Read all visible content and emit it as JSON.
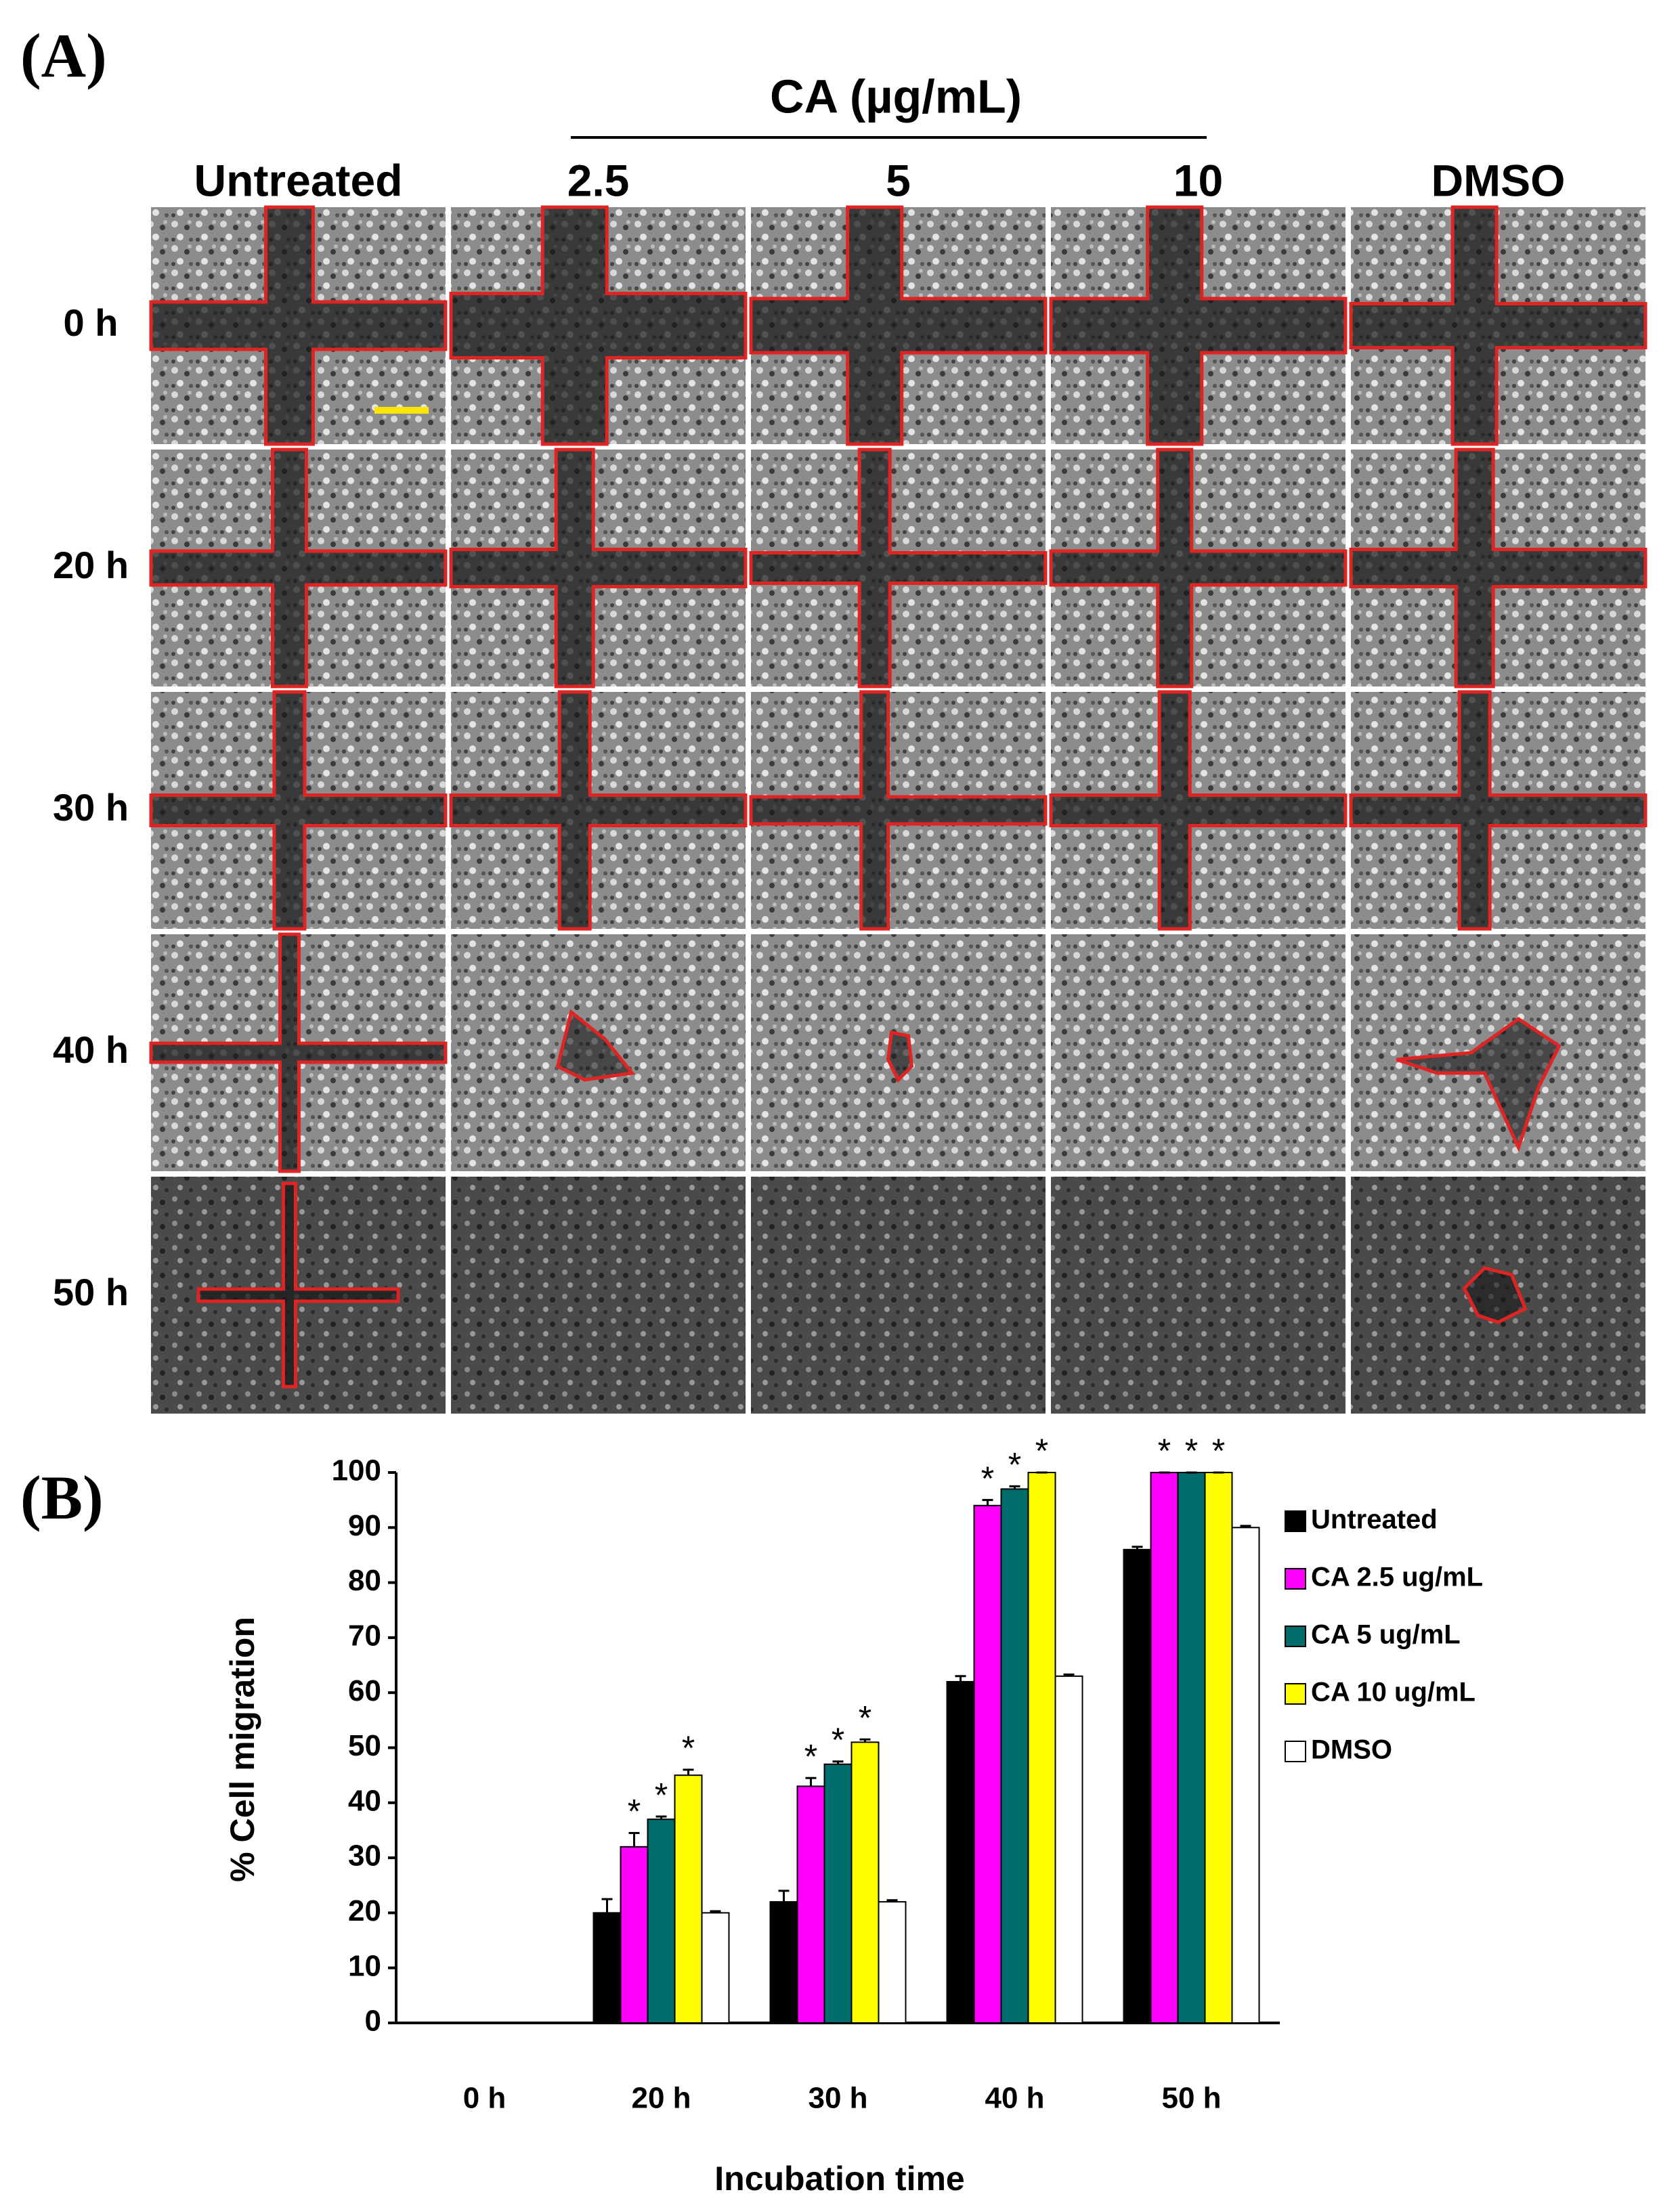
{
  "panel_a": {
    "label": "(A)",
    "group_label": "CA (µg/mL)",
    "columns": [
      "Untreated",
      "2.5",
      "5",
      "10",
      "DMSO"
    ],
    "rows": [
      "0 h",
      "20 h",
      "30 h",
      "40 h",
      "50 h"
    ]
  },
  "chart_data": {
    "type": "bar",
    "panel_label": "(B)",
    "categories": [
      "0 h",
      "20 h",
      "30 h",
      "40 h",
      "50 h"
    ],
    "series": [
      {
        "name": "Untreated",
        "color": "#000000",
        "values": [
          0,
          20,
          22,
          62,
          86
        ],
        "errors": [
          0,
          2.5,
          2,
          1,
          0.5
        ],
        "markers": [
          null,
          null,
          null,
          null,
          null
        ]
      },
      {
        "name": "CA 2.5 ug/mL",
        "color": "#ff00ff",
        "values": [
          0,
          32,
          43,
          94,
          100
        ],
        "errors": [
          0,
          2.5,
          1.5,
          1,
          0
        ],
        "markers": [
          null,
          "*",
          "*",
          "*",
          "*"
        ]
      },
      {
        "name": "CA 5 ug/mL",
        "color": "#006d6d",
        "values": [
          0,
          37,
          47,
          97,
          100
        ],
        "errors": [
          0,
          0.5,
          0.5,
          0.5,
          0
        ],
        "markers": [
          null,
          "*",
          "*",
          "*",
          "*"
        ]
      },
      {
        "name": "CA 10 ug/mL",
        "color": "#ffff00",
        "values": [
          0,
          45,
          51,
          100,
          100
        ],
        "errors": [
          0,
          1,
          0.5,
          0,
          0
        ],
        "markers": [
          null,
          "*",
          "*",
          "*",
          "*"
        ]
      },
      {
        "name": "DMSO",
        "color": "#ffffff",
        "values": [
          0,
          20,
          22,
          63,
          90
        ],
        "errors": [
          0,
          0.3,
          0.3,
          0.3,
          0.3
        ],
        "markers": [
          null,
          null,
          null,
          null,
          null
        ]
      }
    ],
    "y_label": "% Cell migration",
    "x_label": "Incubation time",
    "ylim": [
      0,
      100
    ],
    "yticks": [
      0,
      10,
      20,
      30,
      40,
      50,
      60,
      70,
      80,
      90,
      100
    ],
    "grid": false,
    "legend": "right"
  }
}
